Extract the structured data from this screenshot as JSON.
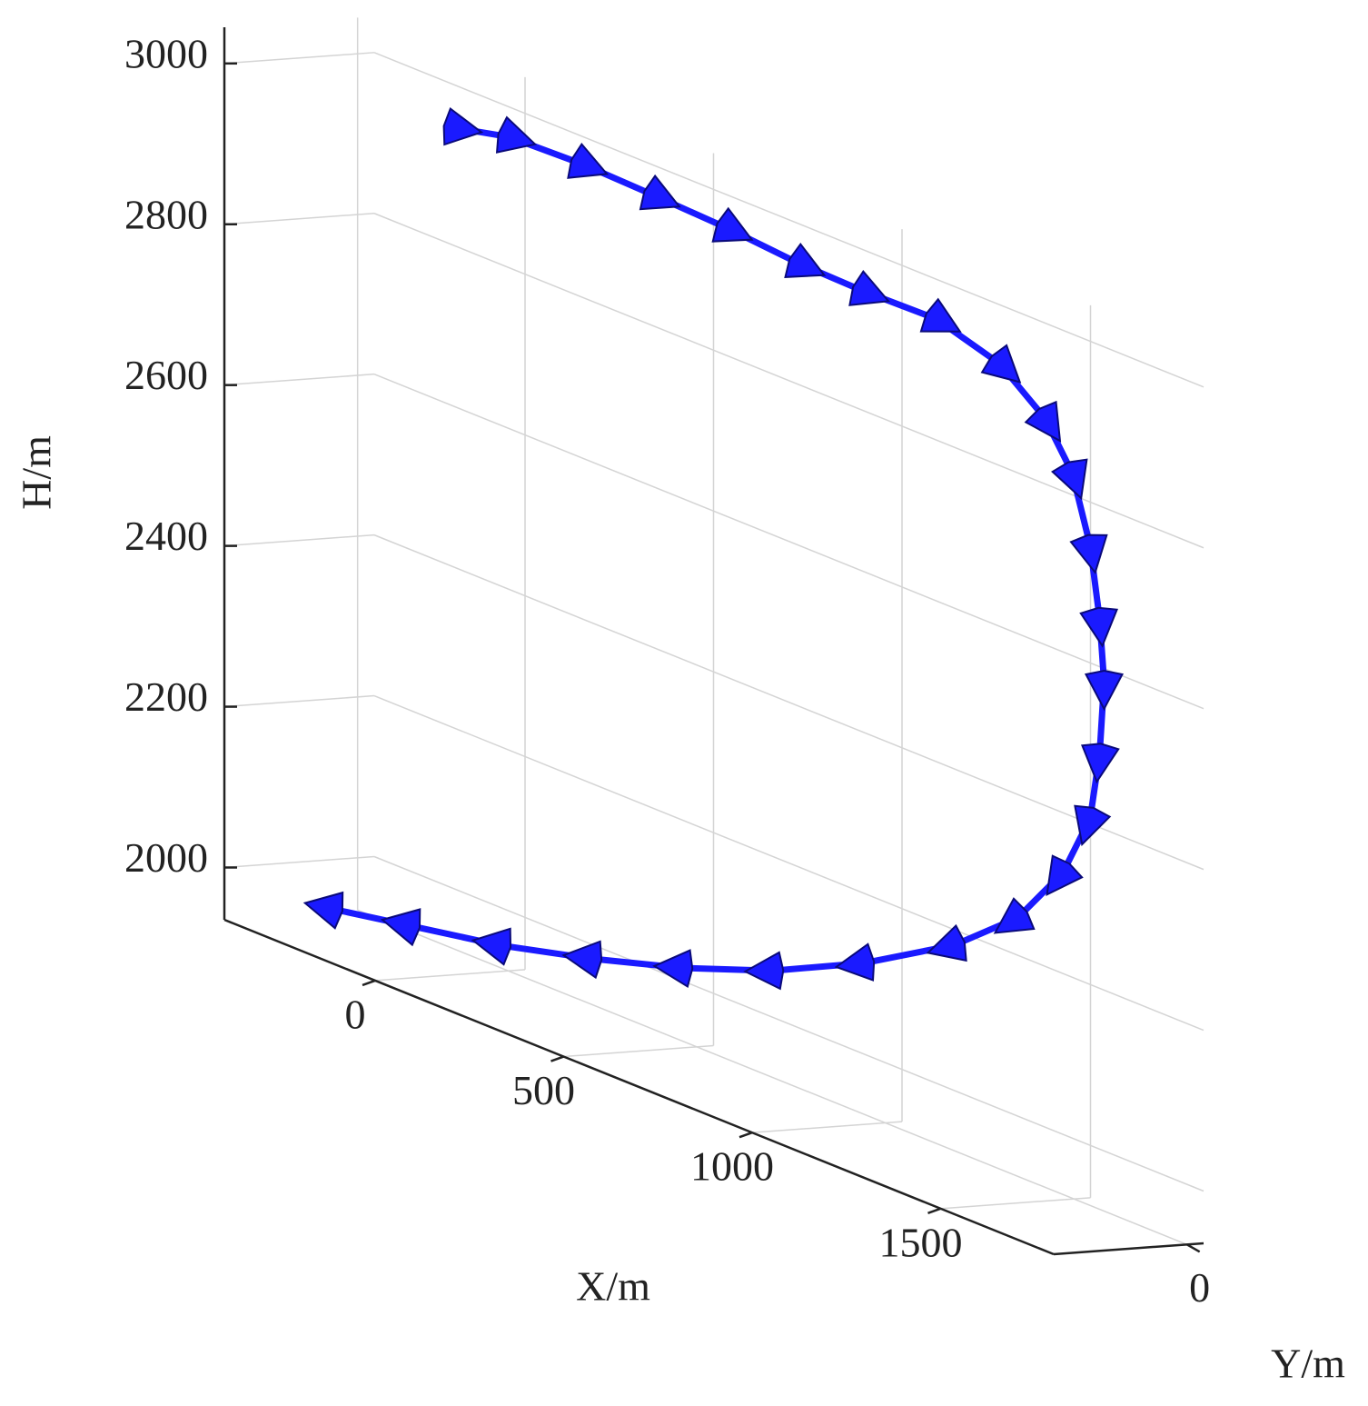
{
  "chart_data": {
    "type": "line3d",
    "xlabel": "X/m",
    "ylabel": "Y/m",
    "zlabel": "H/m",
    "xlim": [
      -400,
      1800
    ],
    "ylim": [
      -400,
      50
    ],
    "zlim": [
      1935,
      3045
    ],
    "xticks": [
      0,
      500,
      1000,
      1500
    ],
    "yticks": [
      0
    ],
    "zticks": [
      2000,
      2200,
      2400,
      2600,
      2800,
      3000
    ],
    "grid": true,
    "series": [
      {
        "color": "#1a1aff",
        "x": [
          -292,
          -87,
          154,
          395,
          636,
          877,
          1118,
          1359,
          1528,
          1648,
          1720,
          1745,
          1757,
          1745,
          1720,
          1672,
          1600,
          1480,
          1311,
          1118,
          949,
          757,
          564,
          371,
          178,
          34
        ],
        "y": [
          -200,
          -200,
          -200,
          -200,
          -200,
          -200,
          -200,
          -200,
          -200,
          -200,
          -200,
          -200,
          -200,
          -200,
          -200,
          -200,
          -200,
          -200,
          -200,
          -200,
          -200,
          -200,
          -200,
          -200,
          -200,
          -200
        ],
        "z": [
          1963,
          1981,
          2002,
          2031,
          2065,
          2107,
          2162,
          2230,
          2296,
          2375,
          2456,
          2540,
          2633,
          2709,
          2795,
          2877,
          2931,
          2976,
          3000,
          2998,
          3000,
          3008,
          3012,
          3015,
          3012,
          2996
        ]
      }
    ]
  }
}
